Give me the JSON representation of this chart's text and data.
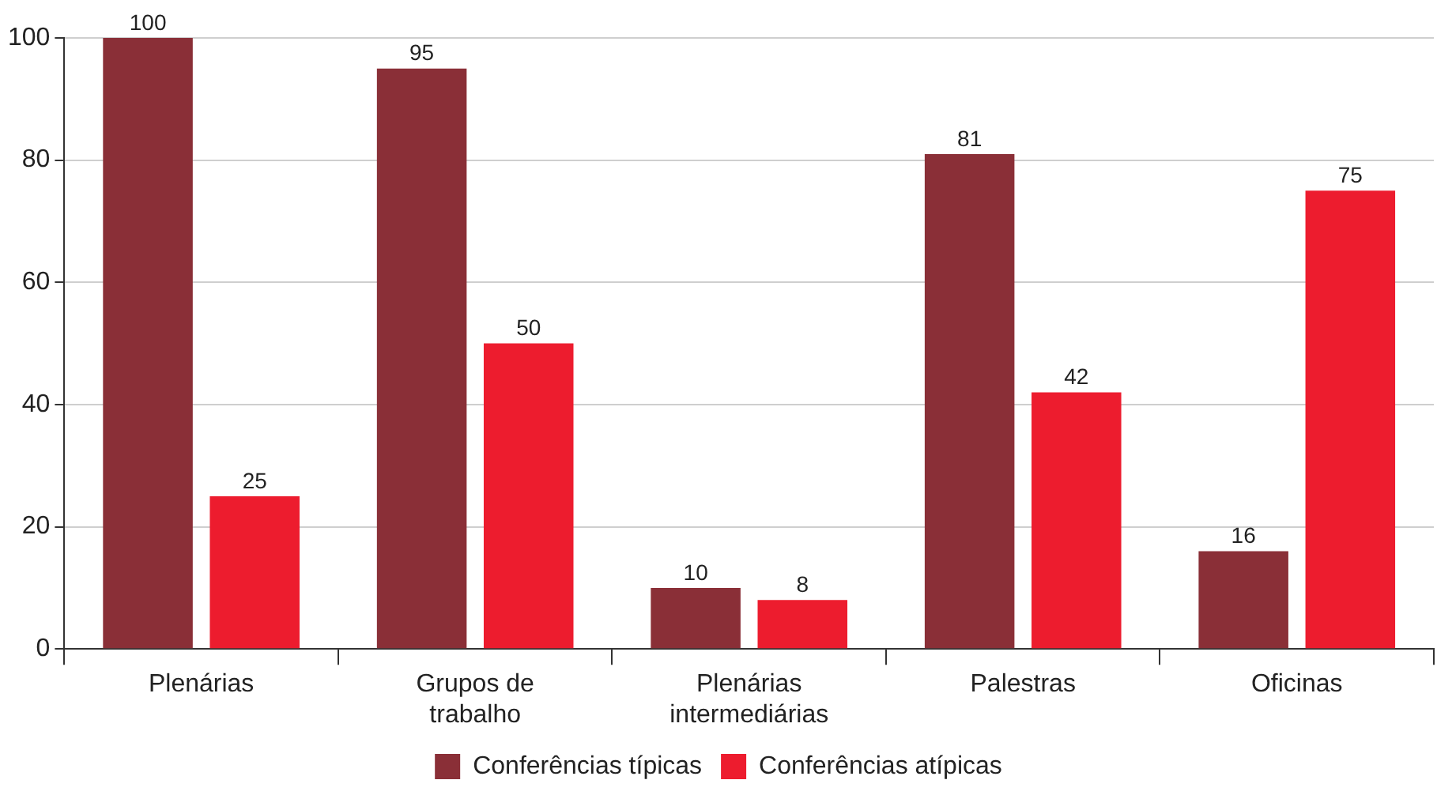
{
  "chart_data": {
    "type": "bar",
    "categories": [
      "Plenárias",
      "Grupos de trabalho",
      "Plenárias intermediárias",
      "Palestras",
      "Oficinas"
    ],
    "series": [
      {
        "name": "Conferências típicas",
        "color": "#8a2f37",
        "values": [
          100,
          95,
          10,
          81,
          16
        ]
      },
      {
        "name": "Conferências atípicas",
        "color": "#ed1c2e",
        "values": [
          25,
          50,
          8,
          42,
          75
        ]
      }
    ],
    "ylim": [
      0,
      100
    ],
    "yticks": [
      0,
      20,
      40,
      60,
      80,
      100
    ],
    "grid": "y",
    "legend": "bottom",
    "data_labels": true
  }
}
